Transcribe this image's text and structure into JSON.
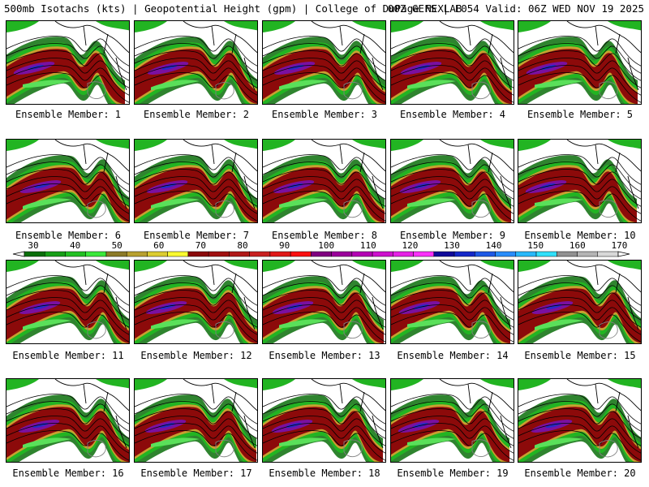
{
  "header": {
    "left_title": "500mb Isotachs (kts) | Geopotential Height (gpm) | College of DuPage NEXLAB",
    "right_title": "00Z GEFS | F054 Valid: 06Z WED NOV 19 2025"
  },
  "colorbar": {
    "tick_labels": [
      "30",
      "40",
      "50",
      "60",
      "70",
      "80",
      "90",
      "100",
      "110",
      "120",
      "130",
      "140",
      "150",
      "160",
      "170"
    ],
    "colors": [
      "#0a6e0a",
      "#169e16",
      "#22c022",
      "#3ae83a",
      "#8c7a28",
      "#b8a030",
      "#dccc30",
      "#fafa30",
      "#8a0a0a",
      "#a01010",
      "#b01818",
      "#c82020",
      "#e01818",
      "#fa1010",
      "#800080",
      "#9a009a",
      "#b400b4",
      "#ce10ce",
      "#e620e6",
      "#fa30fa",
      "#100a9a",
      "#1428c8",
      "#1e58e6",
      "#288cfa",
      "#28b8fa",
      "#30e0fa",
      "#909090",
      "#b4b4b4",
      "#d8d8d8"
    ]
  },
  "members": [
    {
      "label": "Ensemble Member: 1"
    },
    {
      "label": "Ensemble Member: 2"
    },
    {
      "label": "Ensemble Member: 3"
    },
    {
      "label": "Ensemble Member: 4"
    },
    {
      "label": "Ensemble Member: 5"
    },
    {
      "label": "Ensemble Member: 6"
    },
    {
      "label": "Ensemble Member: 7"
    },
    {
      "label": "Ensemble Member: 8"
    },
    {
      "label": "Ensemble Member: 9"
    },
    {
      "label": "Ensemble Member: 10"
    },
    {
      "label": "Ensemble Member: 11"
    },
    {
      "label": "Ensemble Member: 12"
    },
    {
      "label": "Ensemble Member: 13"
    },
    {
      "label": "Ensemble Member: 14"
    },
    {
      "label": "Ensemble Member: 15"
    },
    {
      "label": "Ensemble Member: 16"
    },
    {
      "label": "Ensemble Member: 17"
    },
    {
      "label": "Ensemble Member: 18"
    },
    {
      "label": "Ensemble Member: 19"
    },
    {
      "label": "Ensemble Member: 20"
    }
  ],
  "palette": {
    "green_dark": "#0a6e0a",
    "green": "#22b422",
    "green_light": "#5ae05a",
    "gold": "#c8a030",
    "yellow": "#f0e040",
    "dark_red": "#8c0a0a",
    "red": "#c81414",
    "purple": "#7a10a0",
    "blue": "#2a2ac8",
    "contour": "#000000",
    "coast": "#808080"
  }
}
